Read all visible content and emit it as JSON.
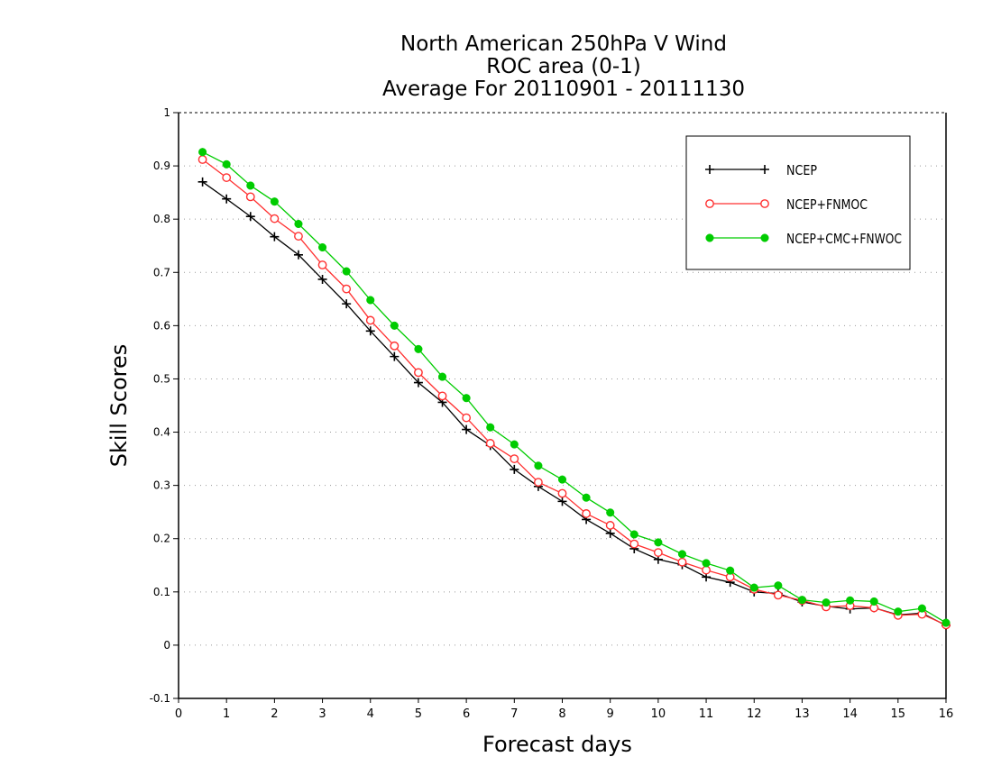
{
  "chart_data": {
    "type": "line",
    "title": [
      "North American 250hPa V Wind",
      "ROC area (0-1)",
      "Average For 20110901 - 20111130"
    ],
    "xlabel": "Forecast days",
    "ylabel": "Skill Scores",
    "xlim": [
      0,
      16
    ],
    "ylim": [
      -0.1,
      1
    ],
    "xticks": [
      "0",
      "1",
      "2",
      "3",
      "4",
      "5",
      "6",
      "7",
      "8",
      "9",
      "10",
      "11",
      "12",
      "13",
      "14",
      "15",
      "16"
    ],
    "yticks": [
      "-0.1",
      "0",
      "0.1",
      "0.2",
      "0.3",
      "0.4",
      "0.5",
      "0.6",
      "0.7",
      "0.8",
      "0.9",
      "1"
    ],
    "grid": true,
    "legend_position": "top-right",
    "x": [
      0.5,
      1,
      1.5,
      2,
      2.5,
      3,
      3.5,
      4,
      4.5,
      5,
      5.5,
      6,
      6.5,
      7,
      7.5,
      8,
      8.5,
      9,
      9.5,
      10,
      10.5,
      11,
      11.5,
      12,
      12.5,
      13,
      13.5,
      14,
      14.5,
      15,
      15.5,
      16
    ],
    "series": [
      {
        "name": "NCEP",
        "color": "#000000",
        "marker": "plus",
        "values": [
          0.87,
          0.838,
          0.805,
          0.767,
          0.733,
          0.687,
          0.641,
          0.59,
          0.542,
          0.493,
          0.456,
          0.405,
          0.375,
          0.33,
          0.298,
          0.27,
          0.236,
          0.21,
          0.181,
          0.161,
          0.151,
          0.128,
          0.118,
          0.1,
          0.097,
          0.081,
          0.073,
          0.068,
          0.07,
          0.057,
          0.06,
          0.037
        ]
      },
      {
        "name": "NCEP+FNMOC",
        "color": "#ff3030",
        "marker": "open-circle",
        "values": [
          0.912,
          0.878,
          0.842,
          0.801,
          0.768,
          0.714,
          0.669,
          0.61,
          0.562,
          0.512,
          0.468,
          0.427,
          0.379,
          0.35,
          0.306,
          0.285,
          0.247,
          0.225,
          0.19,
          0.174,
          0.156,
          0.141,
          0.128,
          0.105,
          0.094,
          0.084,
          0.072,
          0.074,
          0.07,
          0.056,
          0.058,
          0.038
        ]
      },
      {
        "name": "NCEP+CMC+FNWOC",
        "color": "#00cc00",
        "marker": "filled-circle",
        "values": [
          0.926,
          0.903,
          0.863,
          0.833,
          0.791,
          0.747,
          0.702,
          0.648,
          0.6,
          0.556,
          0.504,
          0.464,
          0.409,
          0.377,
          0.337,
          0.311,
          0.277,
          0.249,
          0.208,
          0.193,
          0.171,
          0.154,
          0.14,
          0.108,
          0.112,
          0.085,
          0.08,
          0.084,
          0.082,
          0.063,
          0.069,
          0.042
        ]
      }
    ]
  }
}
